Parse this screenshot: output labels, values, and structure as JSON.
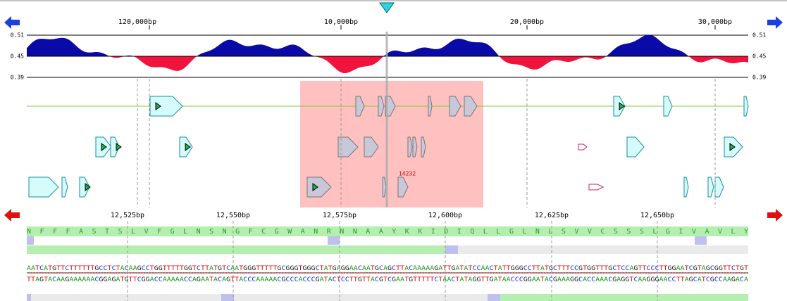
{
  "top_axis": {
    "labels": [
      "120,000bp",
      "10,000bp",
      "20,000bp",
      "30,000bp"
    ]
  },
  "gc_plot": {
    "left_labels": [
      "0.51",
      "0.45",
      "0.39"
    ],
    "right_labels": [
      "0.51",
      "0.45",
      "0.39"
    ]
  },
  "gene_tracks": {
    "annotation": "14232"
  },
  "bottom_axis": {
    "labels": [
      "12,525bp",
      "12,550bp",
      "12,575bp",
      "12,600bp",
      "12,625bp",
      "12,650bp"
    ]
  },
  "sequence": {
    "amino_acids": "NFFFASTSLVFGLNSNGFCGWANRNNAAYKKIDIQLLGLNLSVVCSSSLGIVAVLY",
    "forward": "AATCATGTTCTTTTTTGCCTCTACAAGCCTGGTTTTTGGTCTTATGTCAATGGGTTTTTGCGGGTGGGCTATGAGGAACAATGCAGCTTACAAAAAGATTGATATCCAACTATTGGGCCTTATGCTTTCCGTGGTTTGCTCCAGTTCCCTTGGAATCGTAGCGGTTCTGT",
    "reverse": "TTAGTACAAGAAAAAACGGAGATGTTCGGACCAAAAACCAGAATACAGTTACCCAAAAACGCCCACCCGATACTCCTTGTTACGTCGAATGTTTTTCTAACTATAGGTTGATAACCCGGAATACGAAAGGCACCAAACGAGGTCAAGGGAACCTTAGCATCGCCAAGACA"
  }
}
